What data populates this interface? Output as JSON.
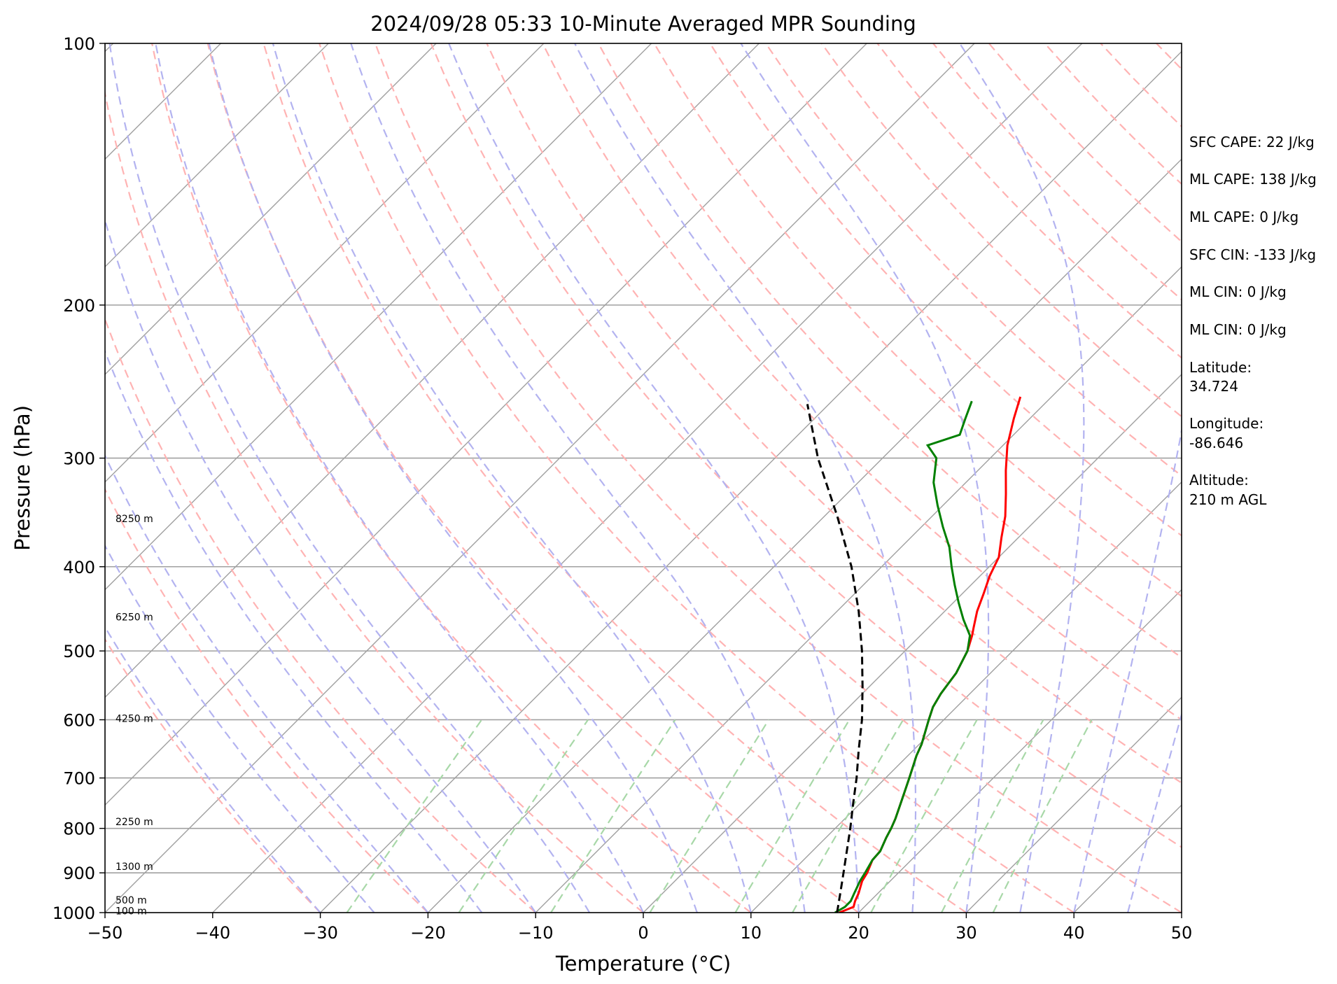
{
  "chart_data": {
    "type": "line",
    "title": "2024/09/28 05:33 10-Minute Averaged MPR Sounding",
    "xlabel": "Temperature (°C)",
    "ylabel": "Pressure (hPa)",
    "xlim": [
      -50,
      50
    ],
    "ylim": [
      1000,
      100
    ],
    "y_scale": "log",
    "skew": true,
    "grid": true,
    "x_ticks": [
      "−50",
      "−40",
      "−30",
      "−20",
      "−10",
      "0",
      "10",
      "20",
      "30",
      "40",
      "50"
    ],
    "y_ticks": [
      "100",
      "200",
      "300",
      "400",
      "500",
      "600",
      "700",
      "800",
      "900",
      "1000"
    ],
    "colors": {
      "temperature": "#ff0000",
      "dewpoint": "#008000",
      "parcel": "#000000",
      "isotherms": "#a0a0a0",
      "dry_adiabats": "#ffb3b3",
      "moist_adiabats": "#b3b3f0",
      "mixing_ratio": "#a8d8a8"
    },
    "series": [
      {
        "key": "temperature",
        "points": [
          [
            1000,
            18.2
          ],
          [
            985,
            19
          ],
          [
            970,
            18.6
          ],
          [
            950,
            18.2
          ],
          [
            920,
            17.4
          ],
          [
            900,
            17.1
          ],
          [
            870,
            16.4
          ],
          [
            850,
            16.3
          ],
          [
            820,
            15.6
          ],
          [
            800,
            15.2
          ],
          [
            780,
            14.7
          ],
          [
            750,
            13.8
          ],
          [
            700,
            12.2
          ],
          [
            660,
            10.8
          ],
          [
            640,
            10.2
          ],
          [
            600,
            8.6
          ],
          [
            580,
            7.8
          ],
          [
            560,
            7.3
          ],
          [
            530,
            6.8
          ],
          [
            500,
            5.8
          ],
          [
            480,
            4.8
          ],
          [
            470,
            4.2
          ],
          [
            450,
            3
          ],
          [
            430,
            2
          ],
          [
            410,
            0.9
          ],
          [
            390,
            0
          ],
          [
            370,
            -1.6
          ],
          [
            350,
            -3.2
          ],
          [
            330,
            -5.2
          ],
          [
            310,
            -7.4
          ],
          [
            290,
            -9.6
          ],
          [
            270,
            -11.5
          ],
          [
            255,
            -12.9
          ]
        ]
      },
      {
        "key": "dewpoint",
        "points": [
          [
            1000,
            17.8
          ],
          [
            985,
            18.2
          ],
          [
            970,
            18.2
          ],
          [
            950,
            17.8
          ],
          [
            920,
            17.2
          ],
          [
            900,
            16.9
          ],
          [
            870,
            16.4
          ],
          [
            850,
            16.3
          ],
          [
            820,
            15.6
          ],
          [
            800,
            15.2
          ],
          [
            780,
            14.7
          ],
          [
            750,
            13.8
          ],
          [
            700,
            12.2
          ],
          [
            660,
            10.8
          ],
          [
            640,
            10.2
          ],
          [
            600,
            8.6
          ],
          [
            580,
            7.8
          ],
          [
            560,
            7.3
          ],
          [
            530,
            6.8
          ],
          [
            500,
            5.8
          ],
          [
            480,
            4.6
          ],
          [
            460,
            2.5
          ],
          [
            440,
            0.5
          ],
          [
            420,
            -1.5
          ],
          [
            400,
            -3.5
          ],
          [
            380,
            -5.5
          ],
          [
            360,
            -8
          ],
          [
            340,
            -10.5
          ],
          [
            320,
            -13
          ],
          [
            300,
            -15
          ],
          [
            290,
            -17
          ],
          [
            282,
            -15
          ],
          [
            270,
            -16
          ],
          [
            258,
            -17
          ]
        ]
      },
      {
        "key": "parcel",
        "points": [
          [
            1000,
            18
          ],
          [
            950,
            16.5
          ],
          [
            900,
            14.9
          ],
          [
            850,
            13.2
          ],
          [
            800,
            11.4
          ],
          [
            750,
            9.4
          ],
          [
            700,
            7.3
          ],
          [
            650,
            4.9
          ],
          [
            600,
            2.4
          ],
          [
            550,
            -0.6
          ],
          [
            500,
            -4
          ],
          [
            450,
            -8
          ],
          [
            400,
            -12.8
          ],
          [
            350,
            -18.8
          ],
          [
            300,
            -26
          ],
          [
            260,
            -32
          ]
        ]
      }
    ],
    "altitude_labels": [
      {
        "label": "8250 m",
        "p": 352
      },
      {
        "label": "6250 m",
        "p": 457
      },
      {
        "label": "4250 m",
        "p": 598
      },
      {
        "label": "2250 m",
        "p": 786
      },
      {
        "label": "1300 m",
        "p": 885
      },
      {
        "label": "500 m",
        "p": 967
      },
      {
        "label": "100 m",
        "p": 995
      }
    ]
  },
  "stats": [
    "SFC CAPE: 22 J/kg",
    "ML CAPE: 138 J/kg",
    "ML CAPE: 0 J/kg",
    "SFC CIN: -133 J/kg",
    "ML CIN: 0 J/kg",
    "ML CIN: 0 J/kg"
  ],
  "location": {
    "latitude_label": "Latitude:",
    "latitude_value": "34.724",
    "longitude_label": "Longitude:",
    "longitude_value": "-86.646",
    "altitude_label": "Altitude:",
    "altitude_value": "210 m AGL"
  }
}
